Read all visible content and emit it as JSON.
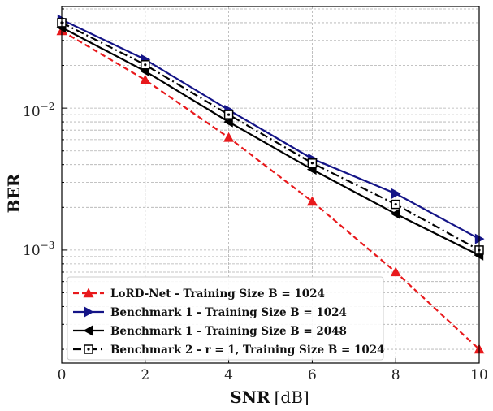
{
  "chart_data": {
    "type": "line",
    "xlabel_bold": "SNR",
    "xlabel_unit": "[dB]",
    "ylabel": "BER",
    "yscale": "log",
    "xlim": [
      0,
      10
    ],
    "ylim": [
      0.00016,
      0.052
    ],
    "grid": true,
    "legend_position": "bottom-left",
    "x_ticks": [
      0,
      2,
      4,
      6,
      8,
      10
    ],
    "x_tick_labels": [
      "0",
      "2",
      "4",
      "6",
      "8",
      "10"
    ],
    "y_tick_labels": {
      "major_2": {
        "base": "10",
        "exp": "−2"
      },
      "major_3": {
        "base": "10",
        "exp": "−3"
      }
    },
    "x": [
      0,
      2,
      4,
      6,
      8,
      10
    ],
    "series": [
      {
        "name": "LoRD-Net - Training Size B = 1024",
        "color": "#e8191c",
        "line": "dashed",
        "marker": "triangle-up",
        "values": [
          0.035,
          0.0158,
          0.0062,
          0.0022,
          0.0007,
          0.0002
        ]
      },
      {
        "name": "Benchmark 1 - Training Size B = 1024",
        "color": "#141487",
        "line": "solid",
        "marker": "triangle-right",
        "values": [
          0.042,
          0.022,
          0.0097,
          0.0044,
          0.0025,
          0.0012
        ]
      },
      {
        "name": "Benchmark 1 - Training Size B = 2048",
        "color": "#000000",
        "line": "solid",
        "marker": "triangle-left",
        "values": [
          0.037,
          0.0182,
          0.008,
          0.0037,
          0.0018,
          0.00092
        ]
      },
      {
        "name": "Benchmark 2 - r = 1, Training Size B = 1024",
        "color": "#000000",
        "line": "dashdot",
        "marker": "square-dot",
        "values": [
          0.04,
          0.0202,
          0.009,
          0.0041,
          0.0021,
          0.001
        ]
      }
    ]
  }
}
